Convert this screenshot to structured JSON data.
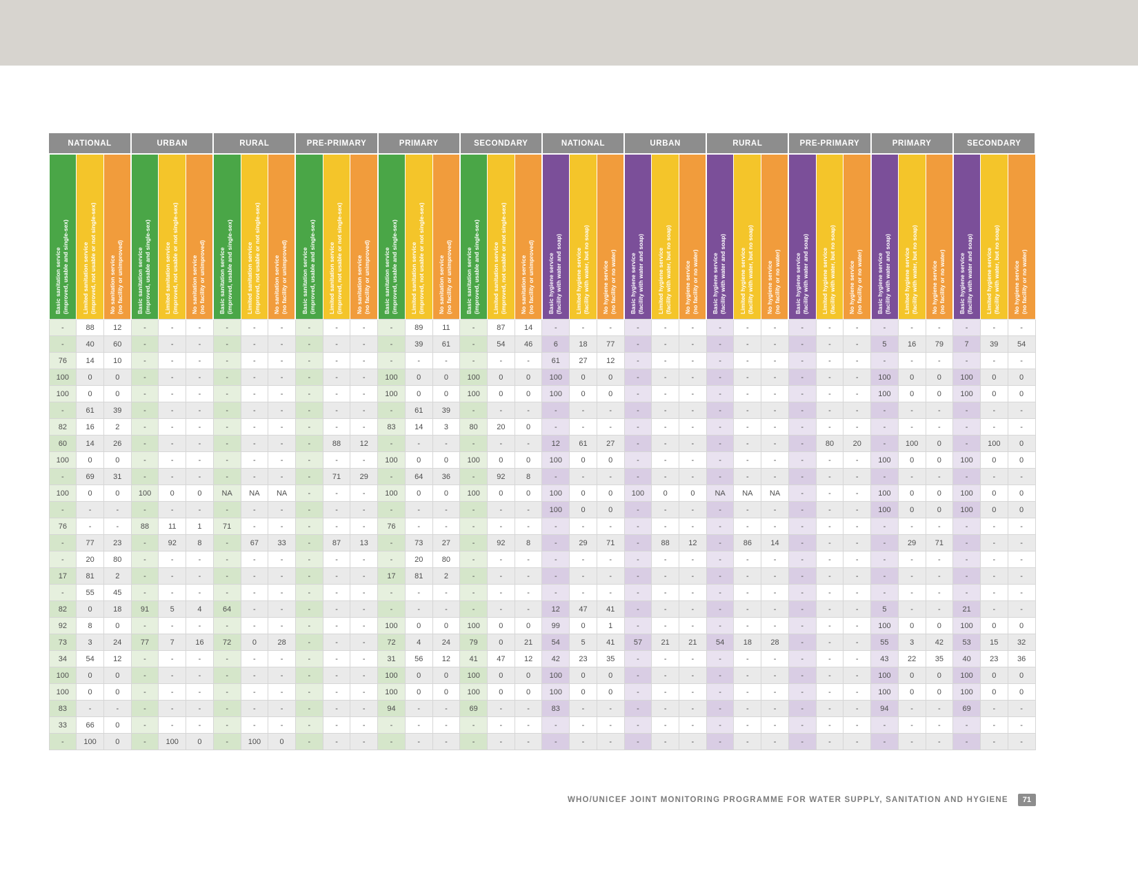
{
  "page": {
    "footer": "WHO/UNICEF JOINT MONITORING PROGRAMME FOR WATER SUPPLY, SANITATION AND HYGIENE",
    "page_number": "71"
  },
  "colors": {
    "sanitation_basic": "#4aa647",
    "limited": "#f4c52a",
    "no_service": "#f19c3c",
    "hygiene_basic": "#7b4f99",
    "group_header_bg": "#8d8d8d"
  },
  "table": {
    "groups": [
      {
        "label": "NATIONAL",
        "type": "sanitation"
      },
      {
        "label": "URBAN",
        "type": "sanitation"
      },
      {
        "label": "RURAL",
        "type": "sanitation"
      },
      {
        "label": "PRE-PRIMARY",
        "type": "sanitation"
      },
      {
        "label": "PRIMARY",
        "type": "sanitation"
      },
      {
        "label": "SECONDARY",
        "type": "sanitation"
      },
      {
        "label": "NATIONAL",
        "type": "hygiene"
      },
      {
        "label": "URBAN",
        "type": "hygiene"
      },
      {
        "label": "RURAL",
        "type": "hygiene"
      },
      {
        "label": "PRE-PRIMARY",
        "type": "hygiene"
      },
      {
        "label": "PRIMARY",
        "type": "hygiene"
      },
      {
        "label": "SECONDARY",
        "type": "hygiene"
      }
    ],
    "sanitation_headers": [
      {
        "line1": "Basic sanitation service",
        "line2": "(improved, usable and single-sex)",
        "color_key": "sanitation_basic"
      },
      {
        "line1": "Limited sanitation service",
        "line2": "(improved, not usable or not single-sex)",
        "color_key": "limited"
      },
      {
        "line1": "No sanitation service",
        "line2": "(no facility or unimproved)",
        "color_key": "no_service"
      }
    ],
    "hygiene_headers": [
      {
        "line1": "Basic hygiene service",
        "line2": "(facility with water and soap)",
        "color_key": "hygiene_basic"
      },
      {
        "line1": "Limited hygiene service",
        "line2": "(facility with water, but no soap)",
        "color_key": "limited"
      },
      {
        "line1": "No hygiene service",
        "line2": "(no facility or no water)",
        "color_key": "no_service"
      }
    ],
    "rows": [
      [
        "-",
        "88",
        "12",
        "-",
        "-",
        "-",
        "-",
        "-",
        "-",
        "-",
        "-",
        "-",
        "-",
        "89",
        "11",
        "-",
        "87",
        "14",
        "-",
        "-",
        "-",
        "-",
        "-",
        "-",
        "-",
        "-",
        "-",
        "-",
        "-",
        "-",
        "-",
        "-",
        "-",
        "-",
        "-",
        "-"
      ],
      [
        "-",
        "40",
        "60",
        "-",
        "-",
        "-",
        "-",
        "-",
        "-",
        "-",
        "-",
        "-",
        "-",
        "39",
        "61",
        "-",
        "54",
        "46",
        "6",
        "18",
        "77",
        "-",
        "-",
        "-",
        "-",
        "-",
        "-",
        "-",
        "-",
        "-",
        "5",
        "16",
        "79",
        "7",
        "39",
        "54"
      ],
      [
        "76",
        "14",
        "10",
        "-",
        "-",
        "-",
        "-",
        "-",
        "-",
        "-",
        "-",
        "-",
        "-",
        "-",
        "-",
        "-",
        "-",
        "-",
        "61",
        "27",
        "12",
        "-",
        "-",
        "-",
        "-",
        "-",
        "-",
        "-",
        "-",
        "-",
        "-",
        "-",
        "-",
        "-",
        "-",
        "-"
      ],
      [
        "100",
        "0",
        "0",
        "-",
        "-",
        "-",
        "-",
        "-",
        "-",
        "-",
        "-",
        "-",
        "100",
        "0",
        "0",
        "100",
        "0",
        "0",
        "100",
        "0",
        "0",
        "-",
        "-",
        "-",
        "-",
        "-",
        "-",
        "-",
        "-",
        "-",
        "100",
        "0",
        "0",
        "100",
        "0",
        "0"
      ],
      [
        "100",
        "0",
        "0",
        "-",
        "-",
        "-",
        "-",
        "-",
        "-",
        "-",
        "-",
        "-",
        "100",
        "0",
        "0",
        "100",
        "0",
        "0",
        "100",
        "0",
        "0",
        "-",
        "-",
        "-",
        "-",
        "-",
        "-",
        "-",
        "-",
        "-",
        "100",
        "0",
        "0",
        "100",
        "0",
        "0"
      ],
      [
        "-",
        "61",
        "39",
        "-",
        "-",
        "-",
        "-",
        "-",
        "-",
        "-",
        "-",
        "-",
        "-",
        "61",
        "39",
        "-",
        "-",
        "-",
        "-",
        "-",
        "-",
        "-",
        "-",
        "-",
        "-",
        "-",
        "-",
        "-",
        "-",
        "-",
        "-",
        "-",
        "-",
        "-",
        "-",
        "-"
      ],
      [
        "82",
        "16",
        "2",
        "-",
        "-",
        "-",
        "-",
        "-",
        "-",
        "-",
        "-",
        "-",
        "83",
        "14",
        "3",
        "80",
        "20",
        "0",
        "-",
        "-",
        "-",
        "-",
        "-",
        "-",
        "-",
        "-",
        "-",
        "-",
        "-",
        "-",
        "-",
        "-",
        "-",
        "-",
        "-",
        "-"
      ],
      [
        "60",
        "14",
        "26",
        "-",
        "-",
        "-",
        "-",
        "-",
        "-",
        "-",
        "88",
        "12",
        "-",
        "-",
        "-",
        "-",
        "-",
        "-",
        "12",
        "61",
        "27",
        "-",
        "-",
        "-",
        "-",
        "-",
        "-",
        "-",
        "80",
        "20",
        "-",
        "100",
        "0",
        "-",
        "100",
        "0"
      ],
      [
        "100",
        "0",
        "0",
        "-",
        "-",
        "-",
        "-",
        "-",
        "-",
        "-",
        "-",
        "-",
        "100",
        "0",
        "0",
        "100",
        "0",
        "0",
        "100",
        "0",
        "0",
        "-",
        "-",
        "-",
        "-",
        "-",
        "-",
        "-",
        "-",
        "-",
        "100",
        "0",
        "0",
        "100",
        "0",
        "0"
      ],
      [
        "-",
        "69",
        "31",
        "-",
        "-",
        "-",
        "-",
        "-",
        "-",
        "-",
        "71",
        "29",
        "-",
        "64",
        "36",
        "-",
        "92",
        "8",
        "-",
        "-",
        "-",
        "-",
        "-",
        "-",
        "-",
        "-",
        "-",
        "-",
        "-",
        "-",
        "-",
        "-",
        "-",
        "-",
        "-",
        "-"
      ],
      [
        "100",
        "0",
        "0",
        "100",
        "0",
        "0",
        "NA",
        "NA",
        "NA",
        "-",
        "-",
        "-",
        "100",
        "0",
        "0",
        "100",
        "0",
        "0",
        "100",
        "0",
        "0",
        "100",
        "0",
        "0",
        "NA",
        "NA",
        "NA",
        "-",
        "-",
        "-",
        "100",
        "0",
        "0",
        "100",
        "0",
        "0"
      ],
      [
        "-",
        "-",
        "-",
        "-",
        "-",
        "-",
        "-",
        "-",
        "-",
        "-",
        "-",
        "-",
        "-",
        "-",
        "-",
        "-",
        "-",
        "-",
        "100",
        "0",
        "0",
        "-",
        "-",
        "-",
        "-",
        "-",
        "-",
        "-",
        "-",
        "-",
        "100",
        "0",
        "0",
        "100",
        "0",
        "0"
      ],
      [
        "76",
        "-",
        "-",
        "88",
        "11",
        "1",
        "71",
        "-",
        "-",
        "-",
        "-",
        "-",
        "76",
        "-",
        "-",
        "-",
        "-",
        "-",
        "-",
        "-",
        "-",
        "-",
        "-",
        "-",
        "-",
        "-",
        "-",
        "-",
        "-",
        "-",
        "-",
        "-",
        "-",
        "-",
        "-",
        "-"
      ],
      [
        "-",
        "77",
        "23",
        "-",
        "92",
        "8",
        "-",
        "67",
        "33",
        "-",
        "87",
        "13",
        "-",
        "73",
        "27",
        "-",
        "92",
        "8",
        "-",
        "29",
        "71",
        "-",
        "88",
        "12",
        "-",
        "86",
        "14",
        "-",
        "-",
        "-",
        "-",
        "29",
        "71",
        "-",
        "-",
        "-"
      ],
      [
        "-",
        "20",
        "80",
        "-",
        "-",
        "-",
        "-",
        "-",
        "-",
        "-",
        "-",
        "-",
        "-",
        "20",
        "80",
        "-",
        "-",
        "-",
        "-",
        "-",
        "-",
        "-",
        "-",
        "-",
        "-",
        "-",
        "-",
        "-",
        "-",
        "-",
        "-",
        "-",
        "-",
        "-",
        "-",
        "-"
      ],
      [
        "17",
        "81",
        "2",
        "-",
        "-",
        "-",
        "-",
        "-",
        "-",
        "-",
        "-",
        "-",
        "17",
        "81",
        "2",
        "-",
        "-",
        "-",
        "-",
        "-",
        "-",
        "-",
        "-",
        "-",
        "-",
        "-",
        "-",
        "-",
        "-",
        "-",
        "-",
        "-",
        "-",
        "-",
        "-",
        "-"
      ],
      [
        "-",
        "55",
        "45",
        "-",
        "-",
        "-",
        "-",
        "-",
        "-",
        "-",
        "-",
        "-",
        "-",
        "-",
        "-",
        "-",
        "-",
        "-",
        "-",
        "-",
        "-",
        "-",
        "-",
        "-",
        "-",
        "-",
        "-",
        "-",
        "-",
        "-",
        "-",
        "-",
        "-",
        "-",
        "-",
        "-"
      ],
      [
        "82",
        "0",
        "18",
        "91",
        "5",
        "4",
        "64",
        "-",
        "-",
        "-",
        "-",
        "-",
        "-",
        "-",
        "-",
        "-",
        "-",
        "-",
        "12",
        "47",
        "41",
        "-",
        "-",
        "-",
        "-",
        "-",
        "-",
        "-",
        "-",
        "-",
        "5",
        "-",
        "-",
        "21",
        "-",
        "-"
      ],
      [
        "92",
        "8",
        "0",
        "-",
        "-",
        "-",
        "-",
        "-",
        "-",
        "-",
        "-",
        "-",
        "100",
        "0",
        "0",
        "100",
        "0",
        "0",
        "99",
        "0",
        "1",
        "-",
        "-",
        "-",
        "-",
        "-",
        "-",
        "-",
        "-",
        "-",
        "100",
        "0",
        "0",
        "100",
        "0",
        "0"
      ],
      [
        "73",
        "3",
        "24",
        "77",
        "7",
        "16",
        "72",
        "0",
        "28",
        "-",
        "-",
        "-",
        "72",
        "4",
        "24",
        "79",
        "0",
        "21",
        "54",
        "5",
        "41",
        "57",
        "21",
        "21",
        "54",
        "18",
        "28",
        "-",
        "-",
        "-",
        "55",
        "3",
        "42",
        "53",
        "15",
        "32"
      ],
      [
        "34",
        "54",
        "12",
        "-",
        "-",
        "-",
        "-",
        "-",
        "-",
        "-",
        "-",
        "-",
        "31",
        "56",
        "12",
        "41",
        "47",
        "12",
        "42",
        "23",
        "35",
        "-",
        "-",
        "-",
        "-",
        "-",
        "-",
        "-",
        "-",
        "-",
        "43",
        "22",
        "35",
        "40",
        "23",
        "36"
      ],
      [
        "100",
        "0",
        "0",
        "-",
        "-",
        "-",
        "-",
        "-",
        "-",
        "-",
        "-",
        "-",
        "100",
        "0",
        "0",
        "100",
        "0",
        "0",
        "100",
        "0",
        "0",
        "-",
        "-",
        "-",
        "-",
        "-",
        "-",
        "-",
        "-",
        "-",
        "100",
        "0",
        "0",
        "100",
        "0",
        "0"
      ],
      [
        "100",
        "0",
        "0",
        "-",
        "-",
        "-",
        "-",
        "-",
        "-",
        "-",
        "-",
        "-",
        "100",
        "0",
        "0",
        "100",
        "0",
        "0",
        "100",
        "0",
        "0",
        "-",
        "-",
        "-",
        "-",
        "-",
        "-",
        "-",
        "-",
        "-",
        "100",
        "0",
        "0",
        "100",
        "0",
        "0"
      ],
      [
        "83",
        "-",
        "-",
        "-",
        "-",
        "-",
        "-",
        "-",
        "-",
        "-",
        "-",
        "-",
        "94",
        "-",
        "-",
        "69",
        "-",
        "-",
        "83",
        "-",
        "-",
        "-",
        "-",
        "-",
        "-",
        "-",
        "-",
        "-",
        "-",
        "-",
        "94",
        "-",
        "-",
        "69",
        "-",
        "-"
      ],
      [
        "33",
        "66",
        "0",
        "-",
        "-",
        "-",
        "-",
        "-",
        "-",
        "-",
        "-",
        "-",
        "-",
        "-",
        "-",
        "-",
        "-",
        "-",
        "-",
        "-",
        "-",
        "-",
        "-",
        "-",
        "-",
        "-",
        "-",
        "-",
        "-",
        "-",
        "-",
        "-",
        "-",
        "-",
        "-",
        "-"
      ],
      [
        "-",
        "100",
        "0",
        "-",
        "100",
        "0",
        "-",
        "100",
        "0",
        "-",
        "-",
        "-",
        "-",
        "-",
        "-",
        "-",
        "-",
        "-",
        "-",
        "-",
        "-",
        "-",
        "-",
        "-",
        "-",
        "-",
        "-",
        "-",
        "-",
        "-",
        "-",
        "-",
        "-",
        "-",
        "-",
        "-"
      ]
    ]
  }
}
